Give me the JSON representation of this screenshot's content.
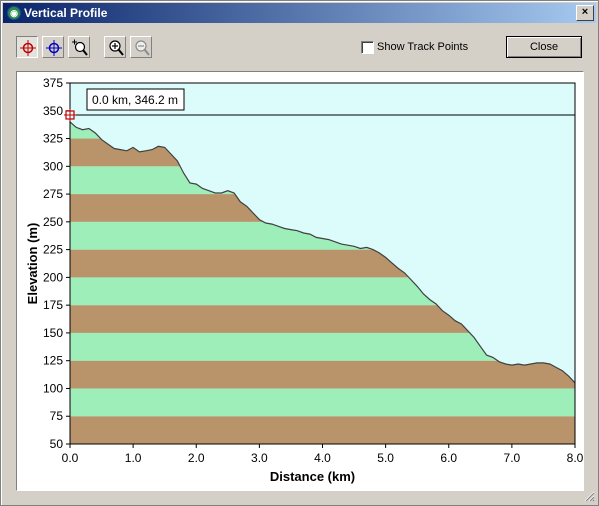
{
  "window": {
    "title": "Vertical Profile",
    "close_glyph": "×"
  },
  "toolbar": {
    "tools": [
      {
        "name": "select-crosshair-red-icon",
        "pressed": true
      },
      {
        "name": "select-crosshair-blue-icon",
        "pressed": false
      },
      {
        "name": "zoom-to-region-icon",
        "pressed": false
      },
      {
        "name": "zoom-in-icon",
        "pressed": false
      },
      {
        "name": "zoom-out-icon",
        "pressed": false,
        "disabled": true
      }
    ],
    "show_track_points_label": "Show Track Points",
    "show_track_points_checked": false,
    "close_label": "Close"
  },
  "chart_data": {
    "type": "area",
    "title": "",
    "xlabel": "Distance (km)",
    "ylabel": "Elevation (m)",
    "xlim": [
      0,
      8
    ],
    "ylim": [
      50,
      375
    ],
    "x_ticks": [
      "0.0",
      "1.0",
      "2.0",
      "3.0",
      "4.0",
      "5.0",
      "6.0",
      "7.0",
      "8.0"
    ],
    "y_ticks": [
      "50",
      "75",
      "100",
      "125",
      "150",
      "175",
      "200",
      "225",
      "250",
      "275",
      "300",
      "325",
      "350",
      "375"
    ],
    "band_colors": [
      "#b9946b",
      "#9eeeb9"
    ],
    "sky_color": "#dcfcfc",
    "cursor": {
      "label": "0.0 km, 346.2 m",
      "x": 0.0,
      "y": 346.2
    },
    "x": [
      0.0,
      0.1,
      0.2,
      0.3,
      0.4,
      0.5,
      0.6,
      0.7,
      0.8,
      0.9,
      1.0,
      1.1,
      1.2,
      1.3,
      1.4,
      1.5,
      1.6,
      1.7,
      1.8,
      1.9,
      2.0,
      2.1,
      2.2,
      2.3,
      2.4,
      2.5,
      2.6,
      2.7,
      2.8,
      2.9,
      3.0,
      3.1,
      3.2,
      3.3,
      3.4,
      3.5,
      3.6,
      3.7,
      3.8,
      3.9,
      4.0,
      4.1,
      4.2,
      4.3,
      4.4,
      4.5,
      4.6,
      4.7,
      4.8,
      4.9,
      5.0,
      5.1,
      5.2,
      5.3,
      5.4,
      5.5,
      5.6,
      5.7,
      5.8,
      5.9,
      6.0,
      6.1,
      6.2,
      6.3,
      6.4,
      6.5,
      6.6,
      6.7,
      6.8,
      6.9,
      7.0,
      7.1,
      7.2,
      7.3,
      7.4,
      7.5,
      7.6,
      7.7,
      7.8,
      7.9,
      8.0
    ],
    "values": [
      340,
      335,
      333,
      334,
      330,
      324,
      320,
      316,
      315,
      314,
      317,
      313,
      314,
      315,
      318,
      317,
      311,
      305,
      294,
      285,
      284,
      280,
      278,
      276,
      276,
      278,
      276,
      268,
      264,
      258,
      252,
      249,
      248,
      246,
      244,
      243,
      242,
      240,
      239,
      236,
      235,
      234,
      232,
      230,
      229,
      228,
      226,
      227,
      225,
      222,
      218,
      213,
      208,
      204,
      198,
      192,
      185,
      180,
      176,
      170,
      166,
      161,
      158,
      152,
      146,
      138,
      130,
      128,
      124,
      122,
      121,
      122,
      121,
      122,
      123,
      123,
      122,
      119,
      116,
      111,
      105
    ]
  }
}
